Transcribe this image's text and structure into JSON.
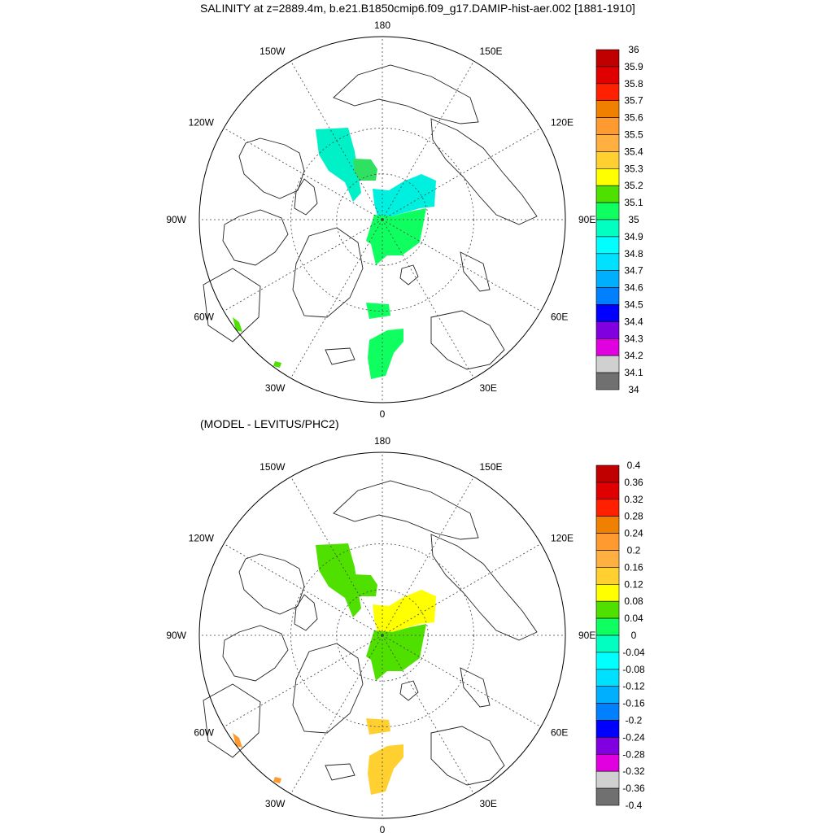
{
  "panels": [
    {
      "id": "top",
      "title": "SALINITY at z=2889.4m, b.e21.B1850cmip6.f09_g17.DAMIP-hist-aer.002 [1881-1910]",
      "longitude_labels": [
        "180",
        "150E",
        "120E",
        "90E",
        "60E",
        "30E",
        "0",
        "30W",
        "60W",
        "90W",
        "120W",
        "150W"
      ],
      "colorbar": {
        "labels": [
          "36",
          "35.9",
          "35.8",
          "35.7",
          "35.6",
          "35.5",
          "35.4",
          "35.3",
          "35.2",
          "35.1",
          "35",
          "34.9",
          "34.8",
          "34.7",
          "34.6",
          "34.5",
          "34.4",
          "34.3",
          "34.2",
          "34.1",
          "34"
        ],
        "colors": [
          "#c00000",
          "#e00000",
          "#ff2000",
          "#f08000",
          "#ff9a30",
          "#ffb040",
          "#ffd030",
          "#ffff00",
          "#50e000",
          "#10ff60",
          "#00ffc0",
          "#00ffff",
          "#00e0ff",
          "#00b0ff",
          "#0080ff",
          "#0000ff",
          "#8000e0",
          "#e000e0",
          "#d0d0d0",
          "#707070"
        ]
      },
      "fields": [
        {
          "region": "canada-basin-west",
          "color": "#00f0c8"
        },
        {
          "region": "canada-basin-east",
          "color": "#30e060"
        },
        {
          "region": "makarov-upper",
          "color": "#00f0e0"
        },
        {
          "region": "eurasian-basin",
          "color": "#10ff60"
        },
        {
          "region": "fram-strait",
          "color": "#10ff60"
        },
        {
          "region": "greenland-sea",
          "color": "#10ff60"
        },
        {
          "region": "labrador-speck",
          "color": "#50e000"
        },
        {
          "region": "atlantic-speck",
          "color": "#50e000"
        }
      ]
    },
    {
      "id": "bottom",
      "title": "(MODEL - LEVITUS/PHC2)",
      "longitude_labels": [
        "180",
        "150E",
        "120E",
        "90E",
        "60E",
        "30E",
        "0",
        "30W",
        "60W",
        "90W",
        "120W",
        "150W"
      ],
      "colorbar": {
        "labels": [
          "0.4",
          "0.36",
          "0.32",
          "0.28",
          "0.24",
          "0.2",
          "0.16",
          "0.12",
          "0.08",
          "0.04",
          "0",
          "-0.04",
          "-0.08",
          "-0.12",
          "-0.16",
          "-0.2",
          "-0.24",
          "-0.28",
          "-0.32",
          "-0.36",
          "-0.4"
        ],
        "colors": [
          "#c00000",
          "#e00000",
          "#ff2000",
          "#f08000",
          "#ff9a30",
          "#ffb040",
          "#ffd030",
          "#ffff00",
          "#50e000",
          "#10ff60",
          "#00ffc0",
          "#00ffff",
          "#00e0ff",
          "#00b0ff",
          "#0080ff",
          "#0000ff",
          "#8000e0",
          "#e000e0",
          "#d0d0d0",
          "#707070"
        ]
      },
      "fields": [
        {
          "region": "canada-basin-west",
          "color": "#50e000"
        },
        {
          "region": "canada-basin-east",
          "color": "#50e000"
        },
        {
          "region": "makarov-upper",
          "color": "#ffff00"
        },
        {
          "region": "eurasian-basin",
          "color": "#50e000"
        },
        {
          "region": "fram-strait",
          "color": "#ffd030"
        },
        {
          "region": "greenland-sea",
          "color": "#ffd030"
        },
        {
          "region": "labrador-speck",
          "color": "#ff9a30"
        },
        {
          "region": "atlantic-speck",
          "color": "#ff9a30"
        }
      ]
    }
  ]
}
